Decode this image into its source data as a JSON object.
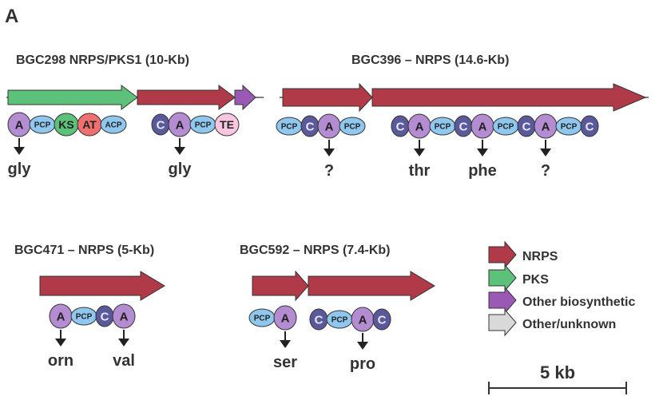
{
  "panel_label": "A",
  "colors": {
    "NRPS": "#b03a48",
    "PKS": "#5cc27a",
    "Other biosynthetic": "#9b59b6",
    "Other/unknown": "#d9d9d9",
    "domain_A": "#b48cd2",
    "domain_C": "#5a5a9a",
    "domain_PCP": "#8fc7ee",
    "domain_ACP": "#8fc7ee",
    "domain_KS": "#5cc27a",
    "domain_AT": "#f07070",
    "domain_TE": "#f7c6e0"
  },
  "clusters": [
    {
      "title": "BGC298 NRPS/PKS1 (10-Kb)",
      "genes": [
        "PKS",
        "NRPS",
        "Other biosynthetic"
      ],
      "modules": [
        [
          "A",
          "PCP",
          "KS",
          "AT",
          "ACP"
        ],
        [
          "C",
          "A",
          "PCP",
          "TE"
        ]
      ],
      "substrates": [
        "gly",
        "gly"
      ]
    },
    {
      "title": "BGC396 – NRPS  (14.6-Kb)",
      "genes": [
        "NRPS",
        "NRPS"
      ],
      "modules": [
        [
          "PCP",
          "C",
          "A",
          "PCP"
        ],
        [
          "C",
          "A",
          "PCP",
          "C",
          "A",
          "PCP",
          "C",
          "A",
          "PCP",
          "C"
        ]
      ],
      "substrates": [
        "?",
        "thr",
        "phe",
        "?"
      ]
    },
    {
      "title": "BGC471 – NRPS  (5-Kb)",
      "genes": [
        "NRPS"
      ],
      "modules": [
        [
          "A",
          "PCP",
          "C",
          "A"
        ]
      ],
      "substrates": [
        "orn",
        "val"
      ]
    },
    {
      "title": "BGC592 – NRPS  (7.4-Kb)",
      "genes": [
        "NRPS",
        "NRPS"
      ],
      "modules": [
        [
          "PCP",
          "A"
        ],
        [
          "C",
          "PCP",
          "A",
          "C"
        ]
      ],
      "substrates": [
        "ser",
        "pro"
      ]
    }
  ],
  "legend": [
    {
      "label": "NRPS",
      "color": "#b03a48"
    },
    {
      "label": "PKS",
      "color": "#5cc27a"
    },
    {
      "label": "Other biosynthetic",
      "color": "#9b59b6"
    },
    {
      "label": "Other/unknown",
      "color": "#d9d9d9"
    }
  ],
  "scale_bar": {
    "label": "5 kb"
  }
}
